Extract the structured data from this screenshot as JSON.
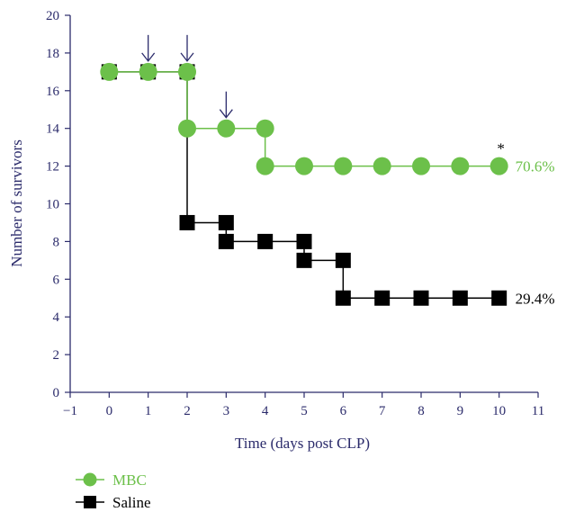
{
  "chart_data": {
    "type": "line",
    "step": true,
    "xlabel": "Time (days post CLP)",
    "ylabel": "Number of survivors",
    "xlim": [
      -1,
      11
    ],
    "ylim": [
      0,
      20
    ],
    "x_ticks": [
      -1,
      0,
      1,
      2,
      3,
      4,
      5,
      6,
      7,
      8,
      9,
      10,
      11
    ],
    "y_ticks": [
      0,
      2,
      4,
      6,
      8,
      10,
      12,
      14,
      16,
      18,
      20
    ],
    "x_tick_labels": [
      "−1",
      "0",
      "1",
      "2",
      "3",
      "4",
      "5",
      "6",
      "7",
      "8",
      "9",
      "10",
      "11"
    ],
    "y_tick_labels": [
      "0",
      "2",
      "4",
      "6",
      "8",
      "10",
      "12",
      "14",
      "16",
      "18",
      "20"
    ],
    "grid": false,
    "legend_position": "bottom-left",
    "series": [
      {
        "name": "MBC",
        "marker": "circle",
        "color": "#6cc04a",
        "points": [
          {
            "x": 0,
            "y": 17
          },
          {
            "x": 1,
            "y": 17
          },
          {
            "x": 2,
            "y": 17
          },
          {
            "x": 2,
            "y": 14
          },
          {
            "x": 3,
            "y": 14
          },
          {
            "x": 4,
            "y": 14
          },
          {
            "x": 4,
            "y": 12
          },
          {
            "x": 5,
            "y": 12
          },
          {
            "x": 6,
            "y": 12
          },
          {
            "x": 7,
            "y": 12
          },
          {
            "x": 8,
            "y": 12
          },
          {
            "x": 9,
            "y": 12
          },
          {
            "x": 10,
            "y": 12
          }
        ],
        "end_label": "70.6%"
      },
      {
        "name": "Saline",
        "marker": "square",
        "color": "#000000",
        "points": [
          {
            "x": 0,
            "y": 17
          },
          {
            "x": 1,
            "y": 17
          },
          {
            "x": 2,
            "y": 17
          },
          {
            "x": 2,
            "y": 9
          },
          {
            "x": 3,
            "y": 9
          },
          {
            "x": 3,
            "y": 8
          },
          {
            "x": 4,
            "y": 8
          },
          {
            "x": 5,
            "y": 8
          },
          {
            "x": 5,
            "y": 7
          },
          {
            "x": 6,
            "y": 7
          },
          {
            "x": 6,
            "y": 5
          },
          {
            "x": 7,
            "y": 5
          },
          {
            "x": 8,
            "y": 5
          },
          {
            "x": 9,
            "y": 5
          },
          {
            "x": 10,
            "y": 5
          }
        ],
        "end_label": "29.4%"
      }
    ],
    "annotations": {
      "arrows_at_x": [
        1,
        2,
        3
      ],
      "arrow_color": "#2b2b6b",
      "significance_marker": "*",
      "significance_at_x": 10
    },
    "axis_color": "#2b2b6b"
  }
}
